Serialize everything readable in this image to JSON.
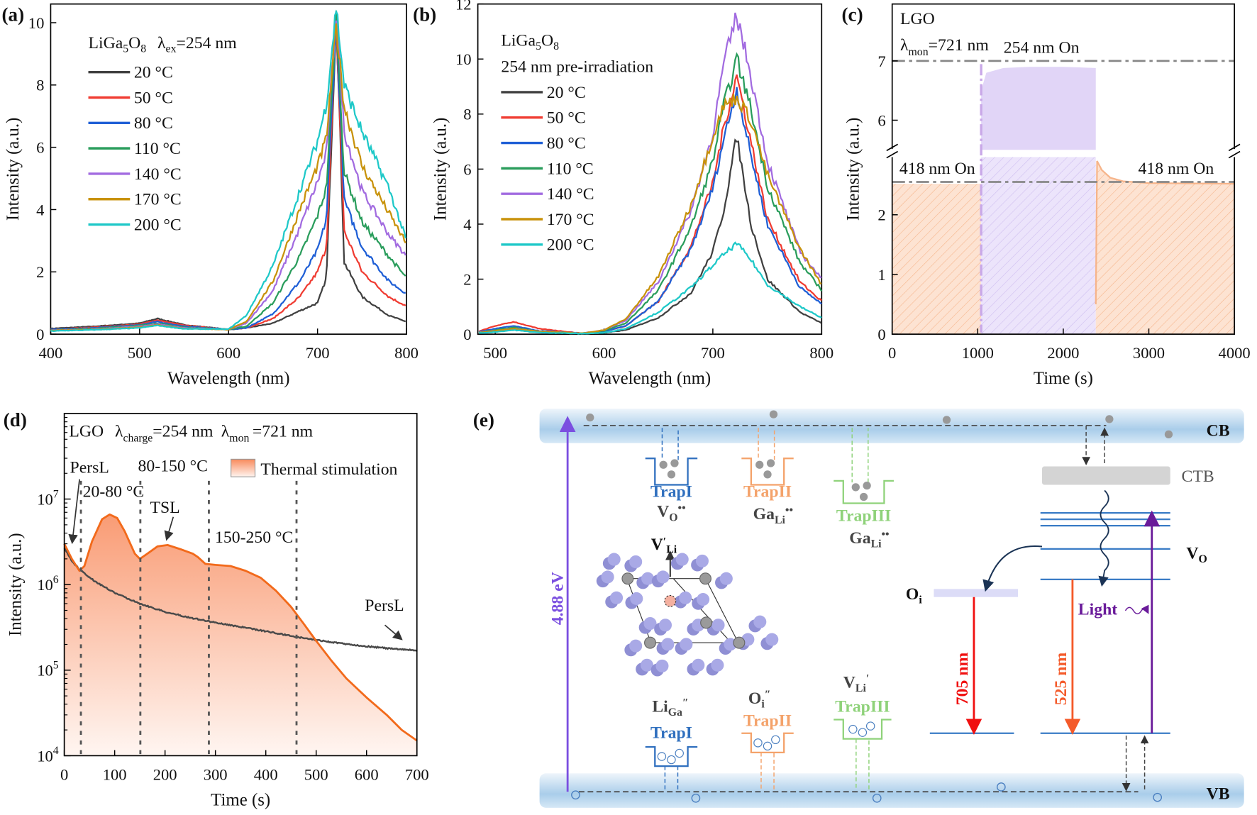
{
  "panel_labels": {
    "a": "(a)",
    "b": "(b)",
    "c": "(c)",
    "d": "(d)",
    "e": "(e)"
  },
  "chart_data": [
    {
      "id": "a",
      "type": "line",
      "xlabel": "Wavelength (nm)",
      "ylabel": "Intensity (a.u.)",
      "xlim": [
        400,
        800
      ],
      "ylim": [
        0,
        10.6
      ],
      "xticks": [
        400,
        500,
        600,
        700,
        800
      ],
      "yticks": [
        0,
        2,
        4,
        6,
        8,
        10
      ],
      "annotation": {
        "compound": "LiGa",
        "sub1": "5",
        "o": "O",
        "sub2": "8",
        "lambda": "λ",
        "lambda_sub": "ex",
        "value": "=254 nm"
      },
      "legend_placement": "top-left",
      "x": [
        400,
        450,
        500,
        520,
        550,
        600,
        620,
        650,
        680,
        700,
        710,
        721,
        730,
        750,
        780,
        800
      ],
      "series": [
        {
          "name": "20 °C",
          "color": "#404040",
          "values": [
            0.18,
            0.25,
            0.35,
            0.5,
            0.3,
            0.15,
            0.2,
            0.35,
            0.75,
            1.0,
            1.8,
            10.3,
            2.3,
            1.2,
            0.6,
            0.4
          ]
        },
        {
          "name": "50 °C",
          "color": "#f03c32",
          "values": [
            0.15,
            0.22,
            0.32,
            0.45,
            0.28,
            0.15,
            0.2,
            0.5,
            1.2,
            2.0,
            2.8,
            10.0,
            3.3,
            2.0,
            1.2,
            0.9
          ]
        },
        {
          "name": "80 °C",
          "color": "#1f5fd6",
          "values": [
            0.15,
            0.2,
            0.3,
            0.4,
            0.25,
            0.15,
            0.2,
            0.65,
            1.7,
            2.7,
            3.7,
            10.1,
            4.3,
            2.8,
            1.7,
            1.3
          ]
        },
        {
          "name": "110 °C",
          "color": "#2a9d5c",
          "values": [
            0.13,
            0.18,
            0.28,
            0.35,
            0.22,
            0.15,
            0.25,
            1.0,
            2.5,
            3.8,
            4.7,
            10.2,
            5.2,
            3.6,
            2.5,
            1.8
          ]
        },
        {
          "name": "140 °C",
          "color": "#a26be0",
          "values": [
            0.12,
            0.16,
            0.25,
            0.32,
            0.2,
            0.15,
            0.35,
            1.4,
            3.4,
            4.9,
            5.8,
            10.3,
            6.5,
            4.6,
            3.2,
            2.5
          ]
        },
        {
          "name": "170 °C",
          "color": "#c8920a",
          "values": [
            0.12,
            0.15,
            0.22,
            0.3,
            0.18,
            0.15,
            0.4,
            1.7,
            4.0,
            5.4,
            6.3,
            9.9,
            7.3,
            5.4,
            3.9,
            2.9
          ]
        },
        {
          "name": "200 °C",
          "color": "#1ec8c8",
          "values": [
            0.1,
            0.14,
            0.2,
            0.28,
            0.17,
            0.16,
            0.6,
            2.2,
            4.6,
            6.2,
            7.4,
            10.5,
            8.0,
            6.5,
            4.7,
            3.0
          ]
        }
      ]
    },
    {
      "id": "b",
      "type": "line",
      "xlabel": "Wavelength (nm)",
      "ylabel": "Intensity (a.u.)",
      "xlim": [
        484,
        800
      ],
      "ylim": [
        0,
        12
      ],
      "xticks": [
        500,
        600,
        700,
        800
      ],
      "yticks": [
        0,
        2,
        4,
        6,
        8,
        10,
        12
      ],
      "annotation": {
        "compound": "LiGa",
        "sub1": "5",
        "o": "O",
        "sub2": "8",
        "line2": "254 nm pre-irradiation"
      },
      "legend_placement": "top-left",
      "x": [
        485,
        500,
        517,
        540,
        580,
        600,
        620,
        650,
        680,
        700,
        710,
        722,
        735,
        750,
        780,
        800
      ],
      "series": [
        {
          "name": "20 °C",
          "color": "#404040",
          "values": [
            0.05,
            0.1,
            0.2,
            0.08,
            0.02,
            0.05,
            0.15,
            0.6,
            1.5,
            3.0,
            4.5,
            7.2,
            4.0,
            2.0,
            0.8,
            0.4
          ]
        },
        {
          "name": "50 °C",
          "color": "#f03c32",
          "values": [
            0.1,
            0.3,
            0.45,
            0.2,
            0.03,
            0.1,
            0.3,
            1.2,
            3.2,
            5.5,
            7.5,
            9.4,
            7.0,
            4.2,
            1.9,
            1.2
          ]
        },
        {
          "name": "80 °C",
          "color": "#1f5fd6",
          "values": [
            0.08,
            0.2,
            0.3,
            0.12,
            0.03,
            0.1,
            0.3,
            1.2,
            3.1,
            5.3,
            7.1,
            8.9,
            6.5,
            4.0,
            1.7,
            1.1
          ]
        },
        {
          "name": "110 °C",
          "color": "#2a9d5c",
          "values": [
            0.06,
            0.15,
            0.25,
            0.1,
            0.03,
            0.12,
            0.4,
            1.6,
            3.9,
            6.3,
            8.3,
            10.0,
            8.2,
            5.4,
            2.6,
            1.6
          ]
        },
        {
          "name": "140 °C",
          "color": "#a26be0",
          "values": [
            0.06,
            0.12,
            0.2,
            0.1,
            0.03,
            0.15,
            0.5,
            1.9,
            4.5,
            7.3,
            9.8,
            11.6,
            9.4,
            6.3,
            3.0,
            2.0
          ]
        },
        {
          "name": "170 °C",
          "color": "#c8920a",
          "values": [
            0.06,
            0.12,
            0.2,
            0.1,
            0.03,
            0.15,
            0.55,
            2.1,
            4.7,
            7.2,
            8.3,
            8.6,
            7.8,
            5.8,
            3.1,
            1.8
          ]
        },
        {
          "name": "200 °C",
          "color": "#1ec8c8",
          "values": [
            0.04,
            0.08,
            0.15,
            0.06,
            0.02,
            0.05,
            0.2,
            0.8,
            1.7,
            2.5,
            2.9,
            3.3,
            2.7,
            1.8,
            1.0,
            0.6
          ]
        }
      ]
    },
    {
      "id": "c",
      "type": "area",
      "xlabel": "Time (s)",
      "ylabel": "Intensity (a.u.)",
      "xlim": [
        0,
        4000
      ],
      "ylim_lower": [
        0,
        2.98
      ],
      "ylim_upper": [
        5.46,
        7.95
      ],
      "broken_y_axis": true,
      "xticks": [
        0,
        1000,
        2000,
        3000,
        4000
      ],
      "yticks": [
        0,
        1,
        2,
        6,
        7
      ],
      "annotations": {
        "sample": "LGO",
        "lambda": "λ",
        "lambda_sub": "mon",
        "lambda_value": "=721 nm",
        "on_254": "254 nm On",
        "on_418_left": "418 nm On",
        "on_418_right": "418 nm On"
      },
      "reference_lines": [
        7.0,
        2.55
      ],
      "series": [
        {
          "color": "#f6b48a",
          "points": [
            [
              0,
              2.52
            ],
            [
              1040,
              2.52
            ]
          ]
        },
        {
          "color": "#c9b3ee",
          "points": [
            [
              1040,
              6.5
            ],
            [
              1100,
              6.8
            ],
            [
              1300,
              6.88
            ],
            [
              1600,
              6.9
            ],
            [
              2000,
              6.9
            ],
            [
              2380,
              6.88
            ]
          ]
        },
        {
          "color": "#f6b48a",
          "points": [
            [
              2380,
              0.5
            ],
            [
              2395,
              2.9
            ],
            [
              2450,
              2.75
            ],
            [
              2550,
              2.62
            ],
            [
              2700,
              2.56
            ],
            [
              3000,
              2.53
            ],
            [
              4000,
              2.52
            ]
          ]
        }
      ]
    },
    {
      "id": "d",
      "type": "line",
      "xlabel": "Time (s)",
      "ylabel": "Intensity (a.u.)",
      "y_scale": "log",
      "xlim": [
        0,
        700
      ],
      "ylim": [
        10000,
        100000000
      ],
      "xticks": [
        0,
        100,
        200,
        300,
        400,
        500,
        600,
        700
      ],
      "yticks": [
        10000,
        100000,
        1000000,
        10000000
      ],
      "ytick_labels": [
        [
          "10",
          "4"
        ],
        [
          "10",
          "5"
        ],
        [
          "10",
          "6"
        ],
        [
          "10",
          "7"
        ]
      ],
      "annotations": {
        "sample": "LGO",
        "lambda": "λ",
        "charge_sub": "charge",
        "charge_value": "=254 nm",
        "mon_sub": "mon",
        "mon_value": "=721 nm",
        "persl_left": "PersL",
        "range1": "20-80 °C",
        "range2": "80-150 °C",
        "tsl": "TSL",
        "range3": "150-250 °C",
        "persl_right": "PersL"
      },
      "legend": [
        {
          "name": "Thermal stimulation",
          "color": "#f88a5c"
        }
      ],
      "legend_placement": "top-right",
      "vertical_markers": [
        33,
        151,
        287,
        461
      ],
      "series": [
        {
          "name": "Thermal stimulation",
          "color": "#f26a1b",
          "points": [
            [
              0,
              3000000
            ],
            [
              15,
              2000000
            ],
            [
              30,
              1450000
            ],
            [
              40,
              1650000
            ],
            [
              55,
              3200000
            ],
            [
              75,
              5800000
            ],
            [
              90,
              6600000
            ],
            [
              105,
              6000000
            ],
            [
              120,
              4200000
            ],
            [
              140,
              2300000
            ],
            [
              150,
              2000000
            ],
            [
              165,
              2300000
            ],
            [
              185,
              2800000
            ],
            [
              205,
              2900000
            ],
            [
              230,
              2600000
            ],
            [
              255,
              2300000
            ],
            [
              265,
              2100000
            ],
            [
              280,
              1750000
            ],
            [
              300,
              1700000
            ],
            [
              330,
              1650000
            ],
            [
              360,
              1450000
            ],
            [
              390,
              1200000
            ],
            [
              420,
              850000
            ],
            [
              450,
              550000
            ],
            [
              475,
              350000
            ],
            [
              500,
              220000
            ],
            [
              530,
              130000
            ],
            [
              560,
              80000
            ],
            [
              600,
              48000
            ],
            [
              640,
              30000
            ],
            [
              670,
              20000
            ],
            [
              700,
              15000
            ]
          ]
        },
        {
          "name": "PersL",
          "color": "#4a4a4a",
          "points": [
            [
              0,
              2700000
            ],
            [
              15,
              1900000
            ],
            [
              30,
              1500000
            ],
            [
              60,
              1100000
            ],
            [
              100,
              800000
            ],
            [
              150,
              600000
            ],
            [
              200,
              480000
            ],
            [
              250,
              410000
            ],
            [
              300,
              360000
            ],
            [
              350,
              320000
            ],
            [
              400,
              285000
            ],
            [
              460,
              245000
            ],
            [
              500,
              225000
            ],
            [
              550,
              205000
            ],
            [
              600,
              190000
            ],
            [
              650,
              178000
            ],
            [
              700,
              170000
            ]
          ]
        }
      ]
    }
  ],
  "diagram": {
    "cb": "CB",
    "vb": "VB",
    "ctb": "CTB",
    "gap": "4.88 eV",
    "vo_level": {
      "main": "V",
      "sub": "O"
    },
    "oi_level": {
      "main": "O",
      "sub": "i"
    },
    "transitions": {
      "red": "705 nm",
      "orange": "525 nm",
      "light": "Light"
    },
    "upper_traps": [
      {
        "name": "TrapI",
        "color": "#2f6fbe",
        "defect": "V",
        "defect_sub": "O",
        "defect_sup": "••"
      },
      {
        "name": "TrapII",
        "color": "#f4a26a",
        "defect": "Ga",
        "defect_sub": "Li",
        "defect_sup": "••"
      },
      {
        "name": "TrapIII",
        "color": "#8fd27a",
        "defect": "Ga",
        "defect_sub": "Li",
        "defect_sup": "••"
      }
    ],
    "lower_traps": [
      {
        "name": "TrapI",
        "color": "#2f6fbe",
        "defect": "Li",
        "defect_sub": "Ga",
        "defect_sup": "″"
      },
      {
        "name": "TrapII",
        "color": "#f4a26a",
        "defect": "O",
        "defect_sub": "i",
        "defect_sup": "″"
      },
      {
        "name": "TrapIII",
        "color": "#8fd27a",
        "defect": "V",
        "defect_sub": "Li",
        "defect_sup": "′"
      }
    ],
    "structure_label": {
      "main": "V",
      "sup": "′",
      "sub": "Li"
    }
  }
}
